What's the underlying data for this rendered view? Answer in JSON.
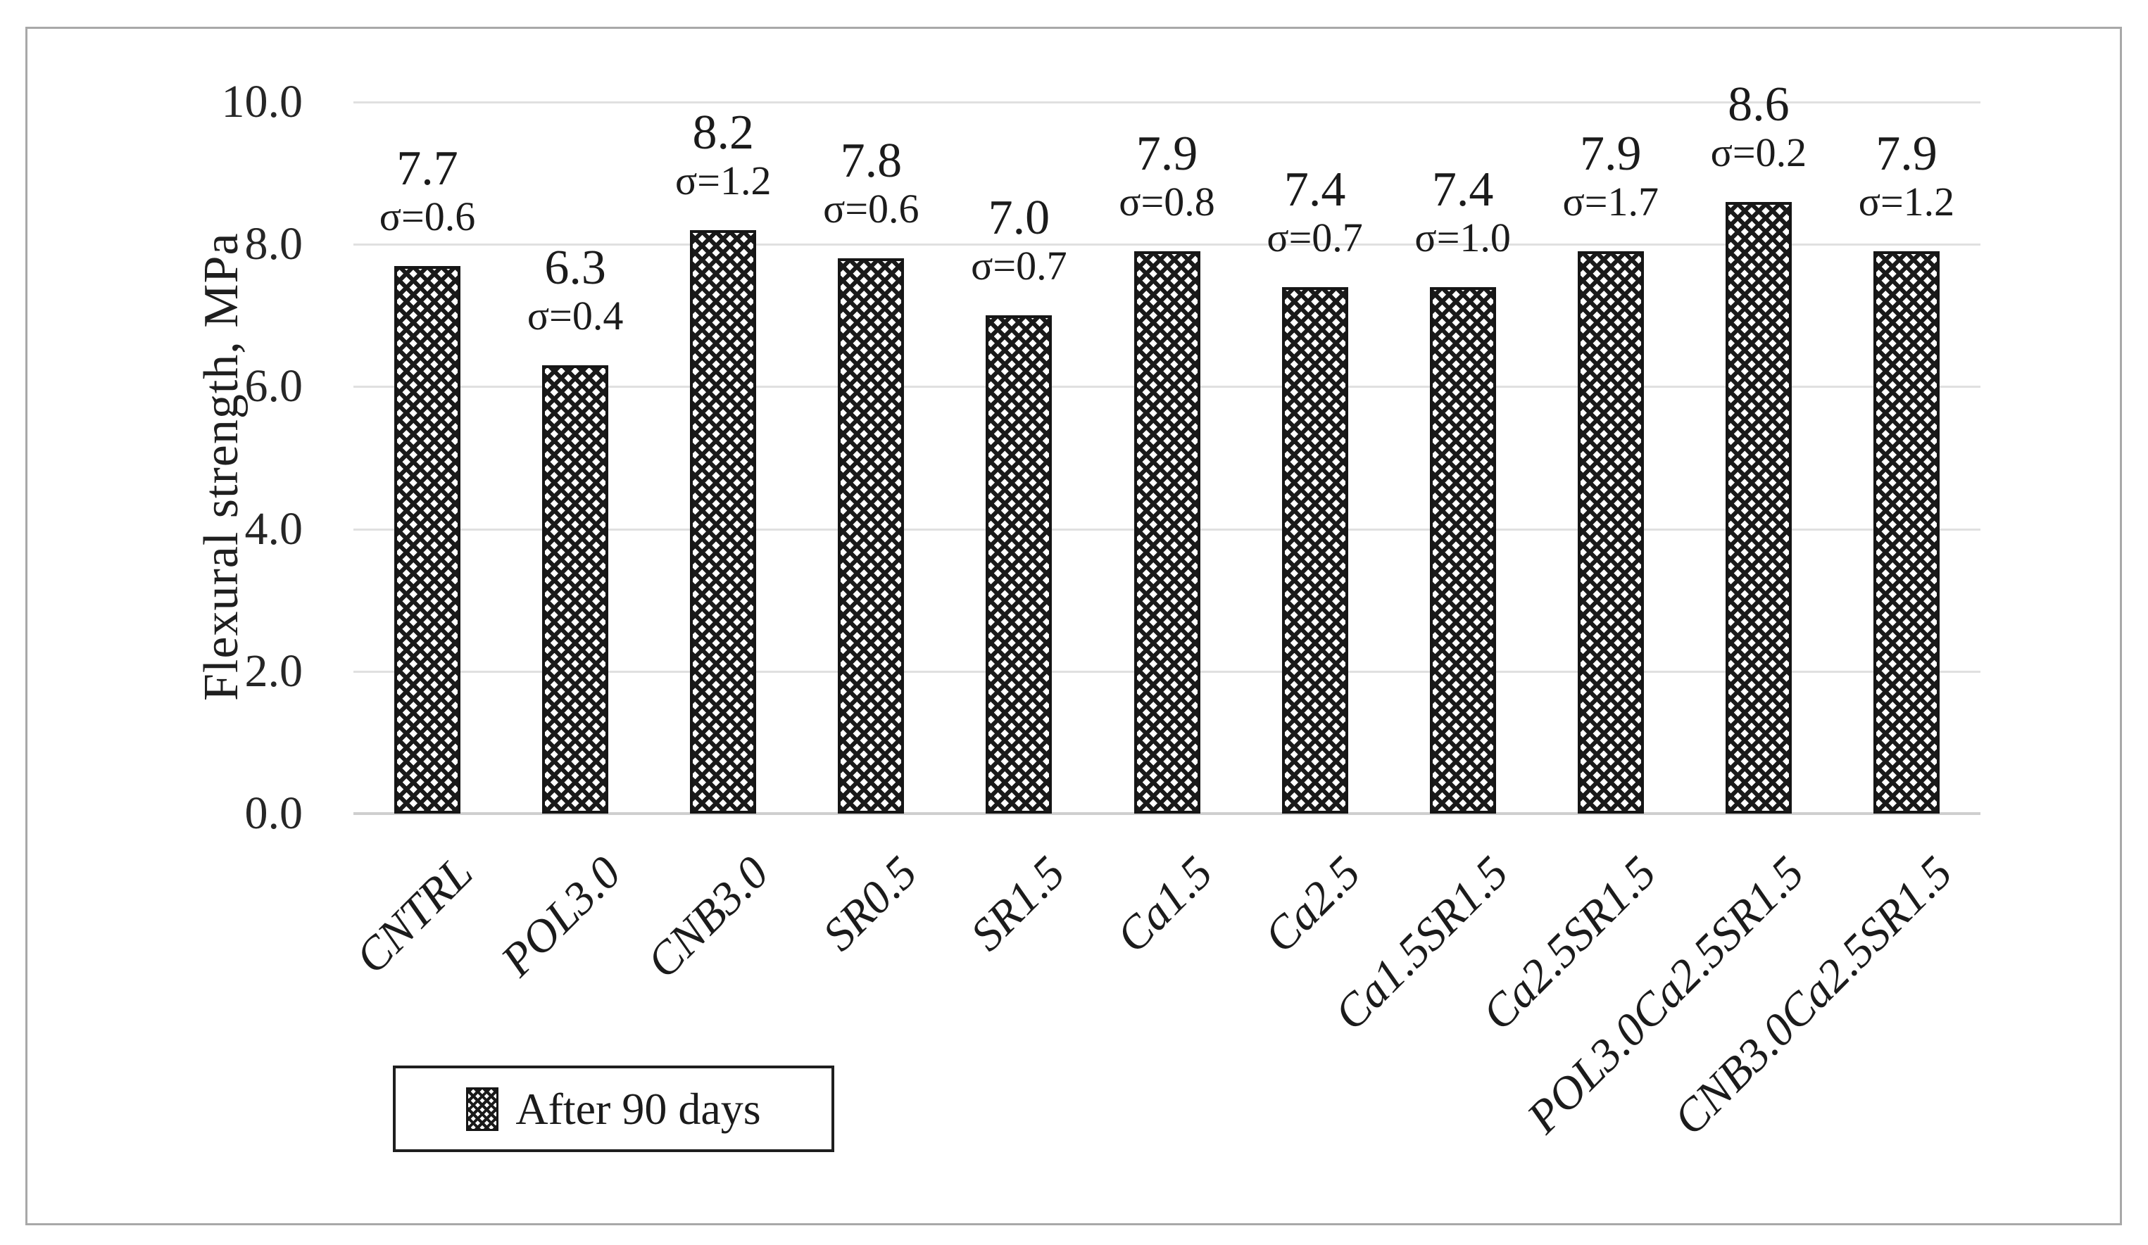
{
  "chart_data": {
    "type": "bar",
    "title": "",
    "xlabel": "",
    "ylabel": "Flexural strength, MPa",
    "ylim": [
      0,
      10
    ],
    "ytick_step": 2.0,
    "ytick_labels": [
      "0.0",
      "2.0",
      "4.0",
      "6.0",
      "8.0",
      "10.0"
    ],
    "grid": true,
    "legend_position": "bottom-left",
    "categories": [
      "CNTRL",
      "POL3.0",
      "CNB3.0",
      "SR0.5",
      "SR1.5",
      "Ca1.5",
      "Ca2.5",
      "Ca1.5SR1.5",
      "Ca2.5SR1.5",
      "POL3.0Ca2.5SR1.5",
      "CNB3.0Ca2.5SR1.5"
    ],
    "series": [
      {
        "name": "After 90 days",
        "values": [
          7.7,
          6.3,
          8.2,
          7.8,
          7.0,
          7.9,
          7.4,
          7.4,
          7.9,
          8.6,
          7.9
        ],
        "sigma": [
          0.6,
          0.4,
          1.2,
          0.6,
          0.7,
          0.8,
          0.7,
          1.0,
          1.7,
          0.2,
          1.2
        ],
        "bar_labels": [
          {
            "value": "7.7",
            "sigma": "σ=0.6"
          },
          {
            "value": "6.3",
            "sigma": "σ=0.4"
          },
          {
            "value": "8.2",
            "sigma": "σ=1.2"
          },
          {
            "value": "7.8",
            "sigma": "σ=0.6"
          },
          {
            "value": "7.0",
            "sigma": "σ=0.7"
          },
          {
            "value": "7.9",
            "sigma": "σ=0.8"
          },
          {
            "value": "7.4",
            "sigma": "σ=0.7"
          },
          {
            "value": "7.4",
            "sigma": "σ=1.0"
          },
          {
            "value": "7.9",
            "sigma": "σ=1.7"
          },
          {
            "value": "8.6",
            "sigma": "σ=0.2"
          },
          {
            "value": "7.9",
            "sigma": "σ=1.2"
          }
        ],
        "pattern": "diagonal-crosshatch"
      }
    ],
    "colors": {
      "pattern_fg": "#1a1a1a",
      "pattern_bg": "#ffffff",
      "bar_border": "#161616",
      "gridline": "#e0e0e0",
      "axis_baseline": "#cfcfcf",
      "text": "#1f1f1f",
      "frame_border": "#a8a8a8"
    }
  }
}
